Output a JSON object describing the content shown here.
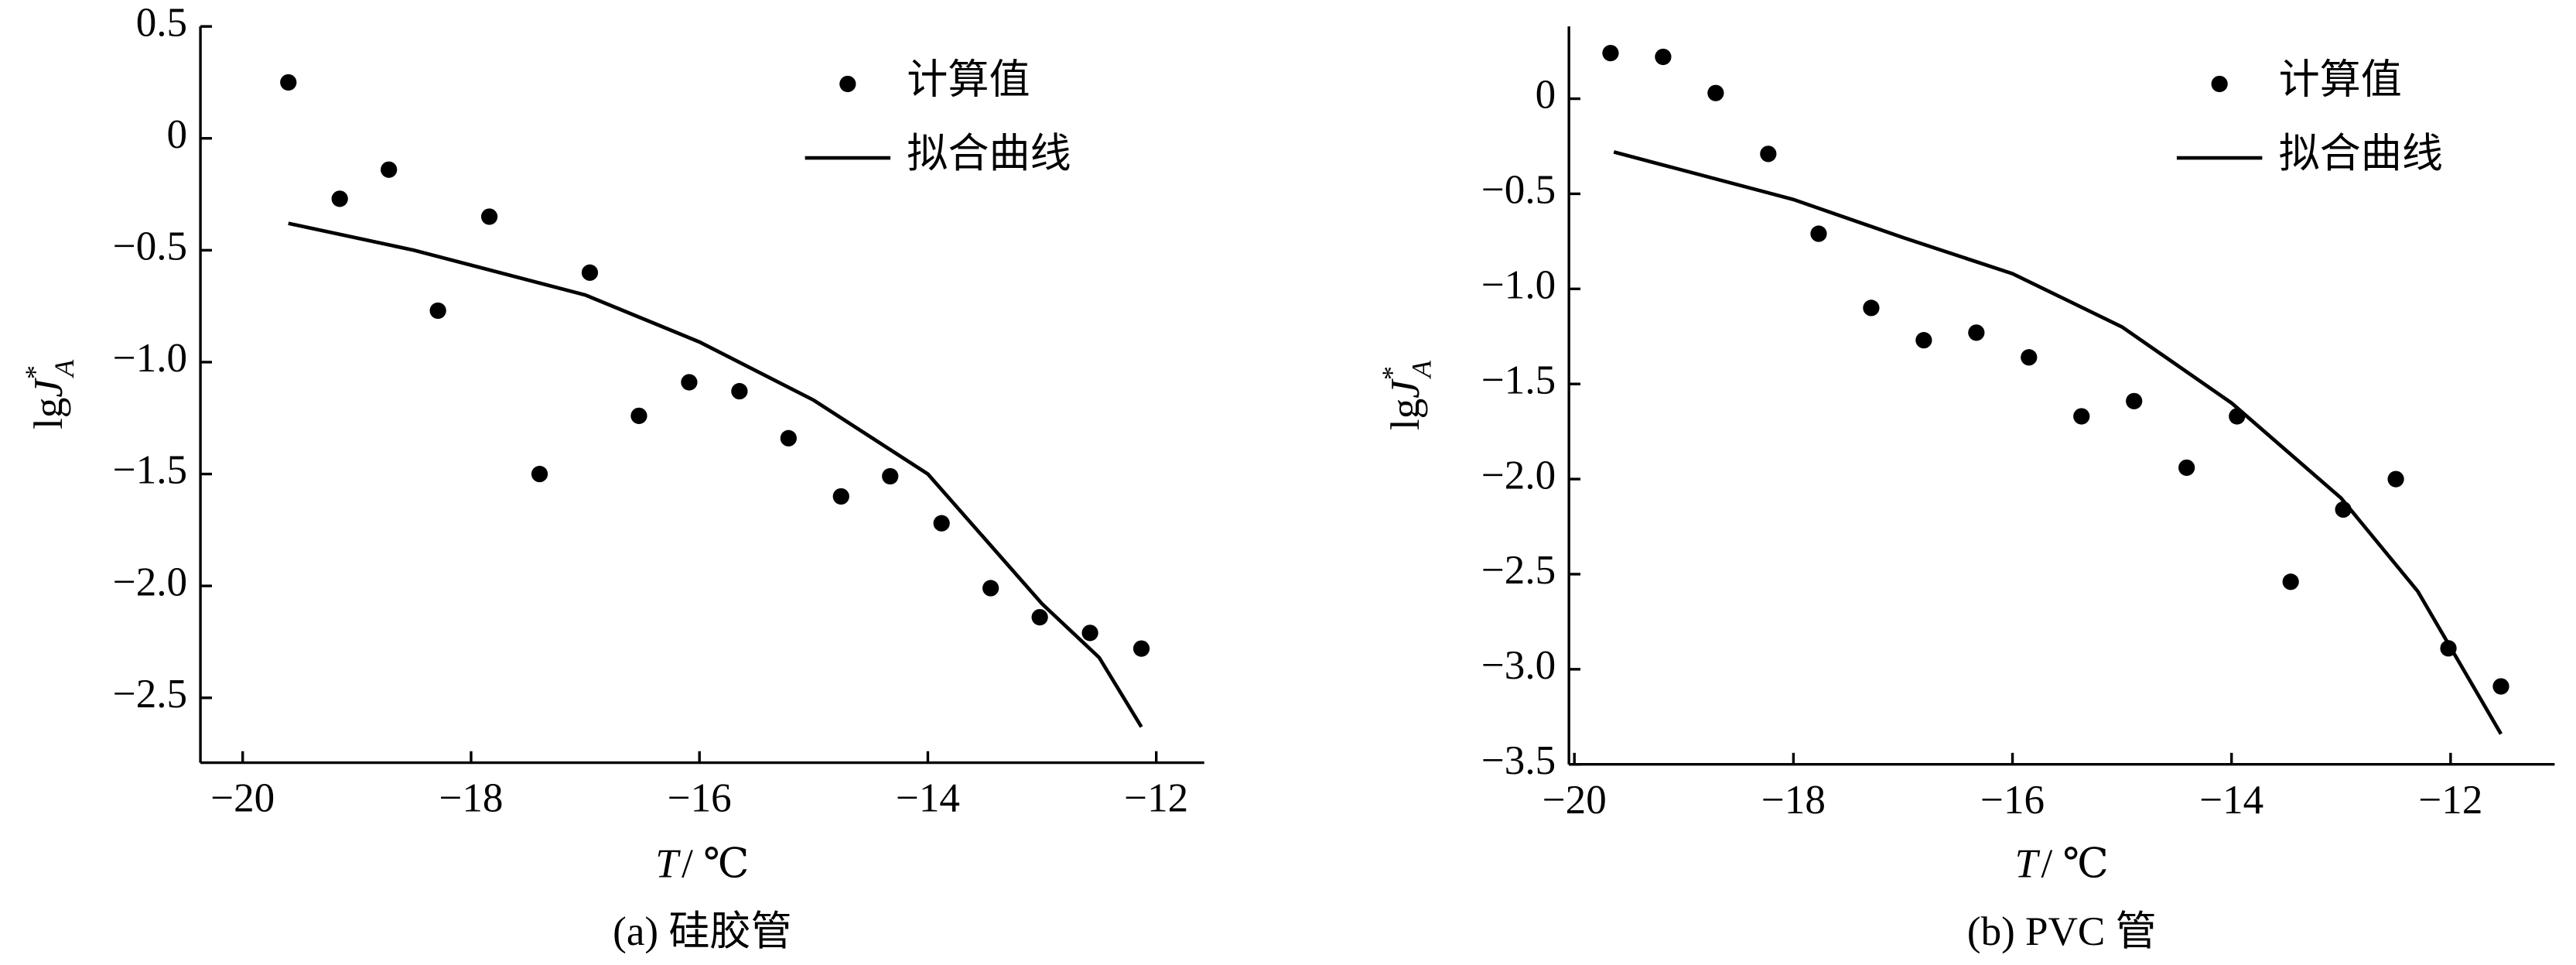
{
  "chart_data": [
    {
      "type": "scatter",
      "caption": "(a)  硅胶管",
      "xlabel": [
        "T",
        "/ ℃"
      ],
      "ylabel": [
        "lg",
        "J",
        "*",
        "A"
      ],
      "xlim": [
        -20.37,
        -11.58
      ],
      "ylim": [
        -2.79,
        0.5
      ],
      "xticks": [
        {
          "value": -20,
          "label": "−20"
        },
        {
          "value": -18,
          "label": "−18"
        },
        {
          "value": -16,
          "label": "−16"
        },
        {
          "value": -14,
          "label": "−14"
        },
        {
          "value": -12,
          "label": "−12"
        }
      ],
      "yticks": [
        0.5,
        0,
        {
          "value": -0.5,
          "label": "−0.5"
        },
        {
          "value": -1.0,
          "label": "−1.0"
        },
        {
          "value": -1.5,
          "label": "−1.5"
        },
        {
          "value": -2.0,
          "label": "−2.0"
        },
        {
          "value": -2.5,
          "label": "−2.5"
        }
      ],
      "legend": "upper right",
      "series": [
        {
          "name": "计算值",
          "style": "marker",
          "color": "#000000",
          "x": [
            -19.6,
            -19.15,
            -18.72,
            -18.29,
            -17.84,
            -17.4,
            -16.96,
            -16.53,
            -16.09,
            -15.65,
            -15.22,
            -14.76,
            -14.33,
            -13.88,
            -13.45,
            -13.02,
            -12.58,
            -12.13
          ],
          "values": [
            0.25,
            -0.27,
            -0.14,
            -0.77,
            -0.35,
            -1.5,
            -0.6,
            -1.24,
            -1.09,
            -1.13,
            -1.34,
            -1.6,
            -1.51,
            -1.72,
            -2.01,
            -2.14,
            -2.21,
            -2.28
          ]
        },
        {
          "name": "拟合曲线",
          "style": "line",
          "color": "#000000",
          "x": [
            -19.6,
            -18.5,
            -17,
            -16,
            -15,
            -14,
            -13,
            -12.5,
            -12.13
          ],
          "values": [
            -0.38,
            -0.5,
            -0.7,
            -0.91,
            -1.17,
            -1.5,
            -2.08,
            -2.32,
            -2.63
          ]
        }
      ]
    },
    {
      "type": "scatter",
      "caption": "(b)  PVC 管",
      "xlabel": [
        "T",
        "/ ℃"
      ],
      "ylabel": [
        "lg",
        "J",
        "*",
        "A"
      ],
      "xlim": [
        -20.05,
        -11.05
      ],
      "ylim": [
        -3.5,
        0.38
      ],
      "xticks": [
        {
          "value": -20,
          "label": "−20"
        },
        {
          "value": -18,
          "label": "−18"
        },
        {
          "value": -16,
          "label": "−16"
        },
        {
          "value": -14,
          "label": "−14"
        },
        {
          "value": -12,
          "label": "−12"
        }
      ],
      "yticks": [
        0,
        {
          "value": -0.5,
          "label": "−0.5"
        },
        {
          "value": -1.0,
          "label": "−1.0"
        },
        {
          "value": -1.5,
          "label": "−1.5"
        },
        {
          "value": -2.0,
          "label": "−2.0"
        },
        {
          "value": -2.5,
          "label": "−2.5"
        },
        {
          "value": -3.0,
          "label": "−3.0"
        },
        {
          "value": -3.5,
          "label": "−3.5"
        }
      ],
      "legend": "upper right",
      "series": [
        {
          "name": "计算值",
          "style": "marker",
          "color": "#000000",
          "x": [
            -19.67,
            -19.19,
            -18.71,
            -18.23,
            -17.77,
            -17.29,
            -16.81,
            -16.33,
            -15.85,
            -15.37,
            -14.89,
            -14.41,
            -13.95,
            -13.46,
            -12.98,
            -12.5,
            -12.02,
            -11.54
          ],
          "values": [
            0.24,
            0.22,
            0.03,
            -0.29,
            -0.71,
            -1.1,
            -1.27,
            -1.23,
            -1.36,
            -1.67,
            -1.59,
            -1.94,
            -1.67,
            -2.54,
            -2.16,
            -2.0,
            -2.89,
            -3.09
          ]
        },
        {
          "name": "拟合曲线",
          "style": "line",
          "color": "#000000",
          "x": [
            -19.64,
            -18,
            -17,
            -16,
            -15,
            -14,
            -13,
            -12.3,
            -11.54
          ],
          "values": [
            -0.28,
            -0.53,
            -0.73,
            -0.92,
            -1.2,
            -1.6,
            -2.1,
            -2.59,
            -3.34
          ]
        }
      ]
    }
  ]
}
